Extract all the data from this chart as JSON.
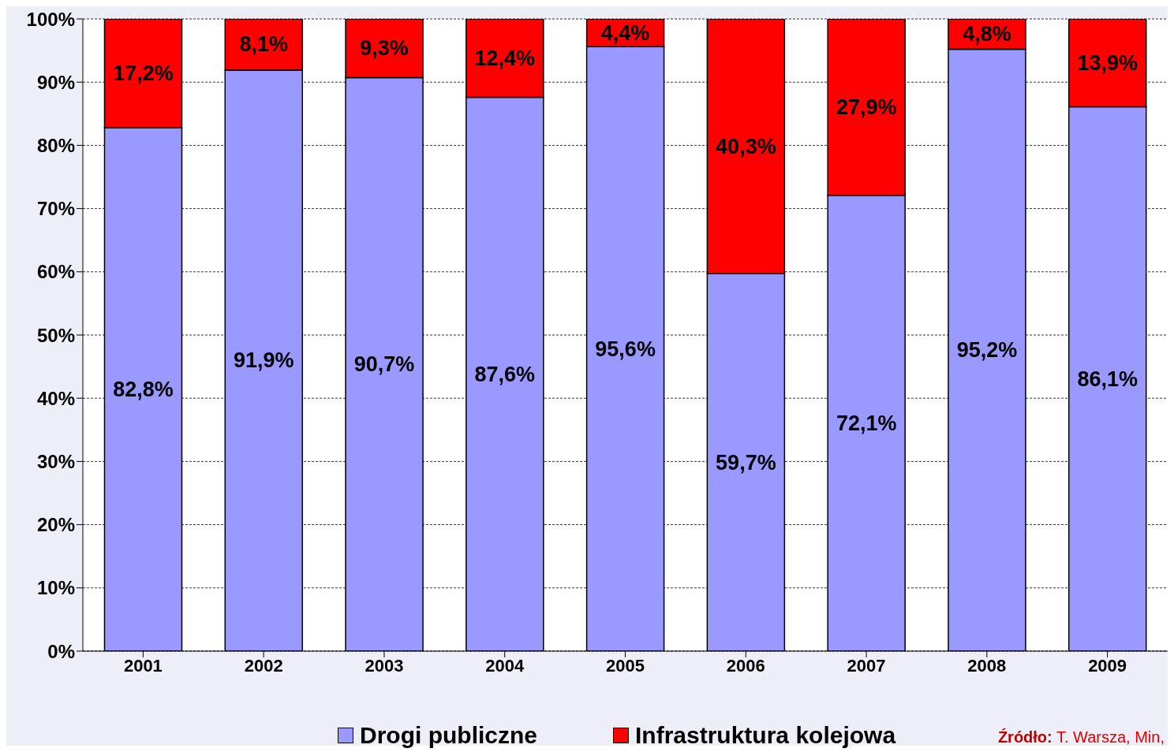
{
  "chart_data": {
    "type": "bar",
    "stacked": true,
    "categories": [
      "2001",
      "2002",
      "2003",
      "2004",
      "2005",
      "2006",
      "2007",
      "2008",
      "2009"
    ],
    "series": [
      {
        "name": "Drogi publiczne",
        "color": "#9999ff",
        "values": [
          82.8,
          91.9,
          90.7,
          87.6,
          95.6,
          59.7,
          72.1,
          95.2,
          86.1
        ],
        "value_labels": [
          "82,8%",
          "91,9%",
          "90,7%",
          "87,6%",
          "95,6%",
          "59,7%",
          "72,1%",
          "95,2%",
          "86,1%"
        ]
      },
      {
        "name": "Infrastruktura kolejowa",
        "color": "#ff0000",
        "values": [
          17.2,
          8.1,
          9.3,
          12.4,
          4.4,
          40.3,
          27.9,
          4.8,
          13.9
        ],
        "value_labels": [
          "17,2%",
          "8,1%",
          "9,3%",
          "12,4%",
          "4,4%",
          "40,3%",
          "27,9%",
          "4,8%",
          "13,9%"
        ]
      }
    ],
    "ylim": [
      0,
      100
    ],
    "yticks": [
      {
        "value": 0,
        "label": "0%"
      },
      {
        "value": 10,
        "label": "10%"
      },
      {
        "value": 20,
        "label": "20%"
      },
      {
        "value": 30,
        "label": "30%"
      },
      {
        "value": 40,
        "label": "40%"
      },
      {
        "value": 50,
        "label": "50%"
      },
      {
        "value": 60,
        "label": "60%"
      },
      {
        "value": 70,
        "label": "70%"
      },
      {
        "value": 80,
        "label": "80%"
      },
      {
        "value": 90,
        "label": "90%"
      },
      {
        "value": 100,
        "label": "100%"
      }
    ],
    "grid": "y",
    "legend": "bottom",
    "annotations": [
      "Źródło: T. Warsza, Min,"
    ]
  }
}
